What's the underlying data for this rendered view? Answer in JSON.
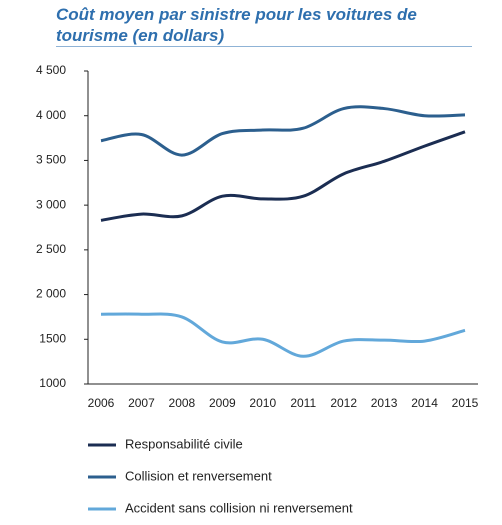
{
  "chart_data": {
    "type": "line",
    "title": "Coût moyen par sinistre pour les voitures de tourisme (en dollars)",
    "categories": [
      "2006",
      "2007",
      "2008",
      "2009",
      "2010",
      "2011",
      "2012",
      "2013",
      "2014",
      "2015"
    ],
    "series": [
      {
        "name": "Responsabilité civile",
        "color": "#1b2d52",
        "values": [
          2830,
          2900,
          2880,
          3100,
          3070,
          3100,
          3350,
          3490,
          3660,
          3820
        ]
      },
      {
        "name": "Collision et renversement",
        "color": "#2c5f8e",
        "values": [
          3720,
          3790,
          3560,
          3800,
          3840,
          3860,
          4080,
          4080,
          4000,
          4010
        ]
      },
      {
        "name": "Accident sans collision ni renversement",
        "color": "#62a8da",
        "values": [
          1780,
          1780,
          1750,
          1470,
          1500,
          1310,
          1480,
          1490,
          1480,
          1600
        ]
      }
    ],
    "ylim": [
      1000,
      4500
    ],
    "yticks": [
      1000,
      1500,
      {
        "value": 2000,
        "label": "2 000"
      },
      {
        "value": 2500,
        "label": "2 500"
      },
      {
        "value": 3000,
        "label": "3 000"
      },
      {
        "value": 3500,
        "label": "3 500"
      },
      {
        "value": 4000,
        "label": "4 000"
      },
      {
        "value": 4500,
        "label": "4 500"
      }
    ]
  }
}
